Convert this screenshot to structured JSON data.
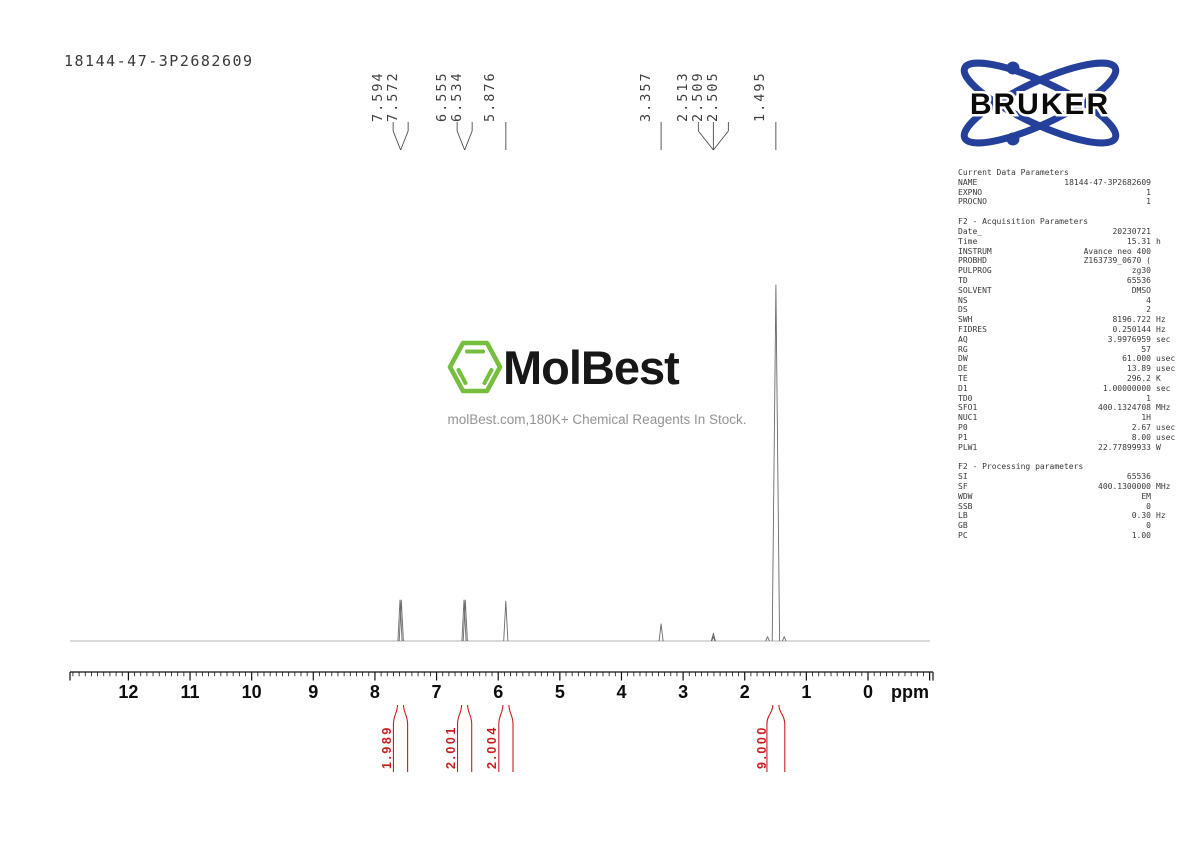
{
  "page": {
    "title": "18144-47-3P2682609",
    "background": "#ffffff"
  },
  "branding": {
    "bruker": {
      "name": "BRUKER",
      "orbit_blue": "#24409a",
      "text_color": "#0a0a0a"
    },
    "molbest": {
      "name": "MolBest",
      "tagline": "molBest.com,180K+ Chemical Reagents In Stock.",
      "hexagon_green": "#76bf3e",
      "text_color": "#171717",
      "tagline_color": "#949494"
    }
  },
  "colors": {
    "integral_red": "#c81e1e",
    "curve_gray": "#6a6a6a",
    "baseline_gray": "#b3b3b3",
    "axis_black": "#111111"
  },
  "parameters_panel": {
    "sections": [
      {
        "heading": "Current Data Parameters",
        "rows": [
          [
            "NAME",
            "18144-47-3P2682609",
            ""
          ],
          [
            "EXPNO",
            "1",
            ""
          ],
          [
            "PROCNO",
            "1",
            ""
          ]
        ]
      },
      {
        "heading": "F2 - Acquisition Parameters",
        "rows": [
          [
            "Date_",
            "20230721",
            ""
          ],
          [
            "Time",
            "15.31",
            "h"
          ],
          [
            "INSTRUM",
            "Avance neo 400",
            ""
          ],
          [
            "PROBHD",
            "Z163739_0670 (",
            ""
          ],
          [
            "PULPROG",
            "zg30",
            ""
          ],
          [
            "TD",
            "65536",
            ""
          ],
          [
            "SOLVENT",
            "DMSO",
            ""
          ],
          [
            "NS",
            "4",
            ""
          ],
          [
            "DS",
            "2",
            ""
          ],
          [
            "SWH",
            "8196.722",
            "Hz"
          ],
          [
            "FIDRES",
            "0.250144",
            "Hz"
          ],
          [
            "AQ",
            "3.9976959",
            "sec"
          ],
          [
            "RG",
            "57",
            ""
          ],
          [
            "DW",
            "61.000",
            "usec"
          ],
          [
            "DE",
            "13.89",
            "usec"
          ],
          [
            "TE",
            "296.2",
            "K"
          ],
          [
            "D1",
            "1.00000000",
            "sec"
          ],
          [
            "TD0",
            "1",
            ""
          ],
          [
            "SFO1",
            "400.1324708",
            "MHz"
          ],
          [
            "NUC1",
            "1H",
            ""
          ],
          [
            "P0",
            "2.67",
            "usec"
          ],
          [
            "P1",
            "8.00",
            "usec"
          ],
          [
            "PLW1",
            "22.77899933",
            "W"
          ]
        ]
      },
      {
        "heading": "F2 - Processing parameters",
        "rows": [
          [
            "SI",
            "65536",
            ""
          ],
          [
            "SF",
            "400.1300000",
            "MHz"
          ],
          [
            "WDW",
            "EM",
            ""
          ],
          [
            "SSB",
            "0",
            ""
          ],
          [
            "LB",
            "0.30",
            "Hz"
          ],
          [
            "GB",
            "0",
            ""
          ],
          [
            "PC",
            "1.00",
            ""
          ]
        ]
      }
    ]
  },
  "chart_data": {
    "type": "line",
    "subtype": "1H-NMR-spectrum",
    "xlabel": "ppm",
    "x_axis": {
      "min": -1.05,
      "max": 12.95,
      "reversed": true,
      "major_ticks": [
        12,
        11,
        10,
        9,
        8,
        7,
        6,
        5,
        4,
        3,
        2,
        1,
        0
      ],
      "minor_tick_interval": 0.1
    },
    "peaks": [
      {
        "ppm": 7.594,
        "intensity": 0.115
      },
      {
        "ppm": 7.572,
        "intensity": 0.115
      },
      {
        "ppm": 6.555,
        "intensity": 0.115
      },
      {
        "ppm": 6.534,
        "intensity": 0.115
      },
      {
        "ppm": 5.876,
        "intensity": 0.112
      },
      {
        "ppm": 3.357,
        "intensity": 0.048
      },
      {
        "ppm": 2.513,
        "intensity": 0.013
      },
      {
        "ppm": 2.509,
        "intensity": 0.022
      },
      {
        "ppm": 2.505,
        "intensity": 0.013
      },
      {
        "ppm": 1.63,
        "intensity": 0.012
      },
      {
        "ppm": 1.495,
        "intensity": 1.0
      },
      {
        "ppm": 1.36,
        "intensity": 0.012
      }
    ],
    "peak_label_groups": [
      {
        "labels": [
          "7.594",
          "7.572"
        ]
      },
      {
        "labels": [
          "6.555",
          "6.534"
        ]
      },
      {
        "labels": [
          "5.876"
        ]
      },
      {
        "labels": [
          "3.357"
        ]
      },
      {
        "labels": [
          "2.513",
          "2.509",
          "2.505"
        ]
      },
      {
        "labels": [
          "1.495"
        ]
      }
    ],
    "integrals": [
      {
        "value": "1.989",
        "ppm_from": 7.7,
        "ppm_to": 7.47
      },
      {
        "value": "2.001",
        "ppm_from": 6.66,
        "ppm_to": 6.43
      },
      {
        "value": "2.004",
        "ppm_from": 5.99,
        "ppm_to": 5.76
      },
      {
        "value": "9.000",
        "ppm_from": 1.64,
        "ppm_to": 1.35
      }
    ]
  }
}
